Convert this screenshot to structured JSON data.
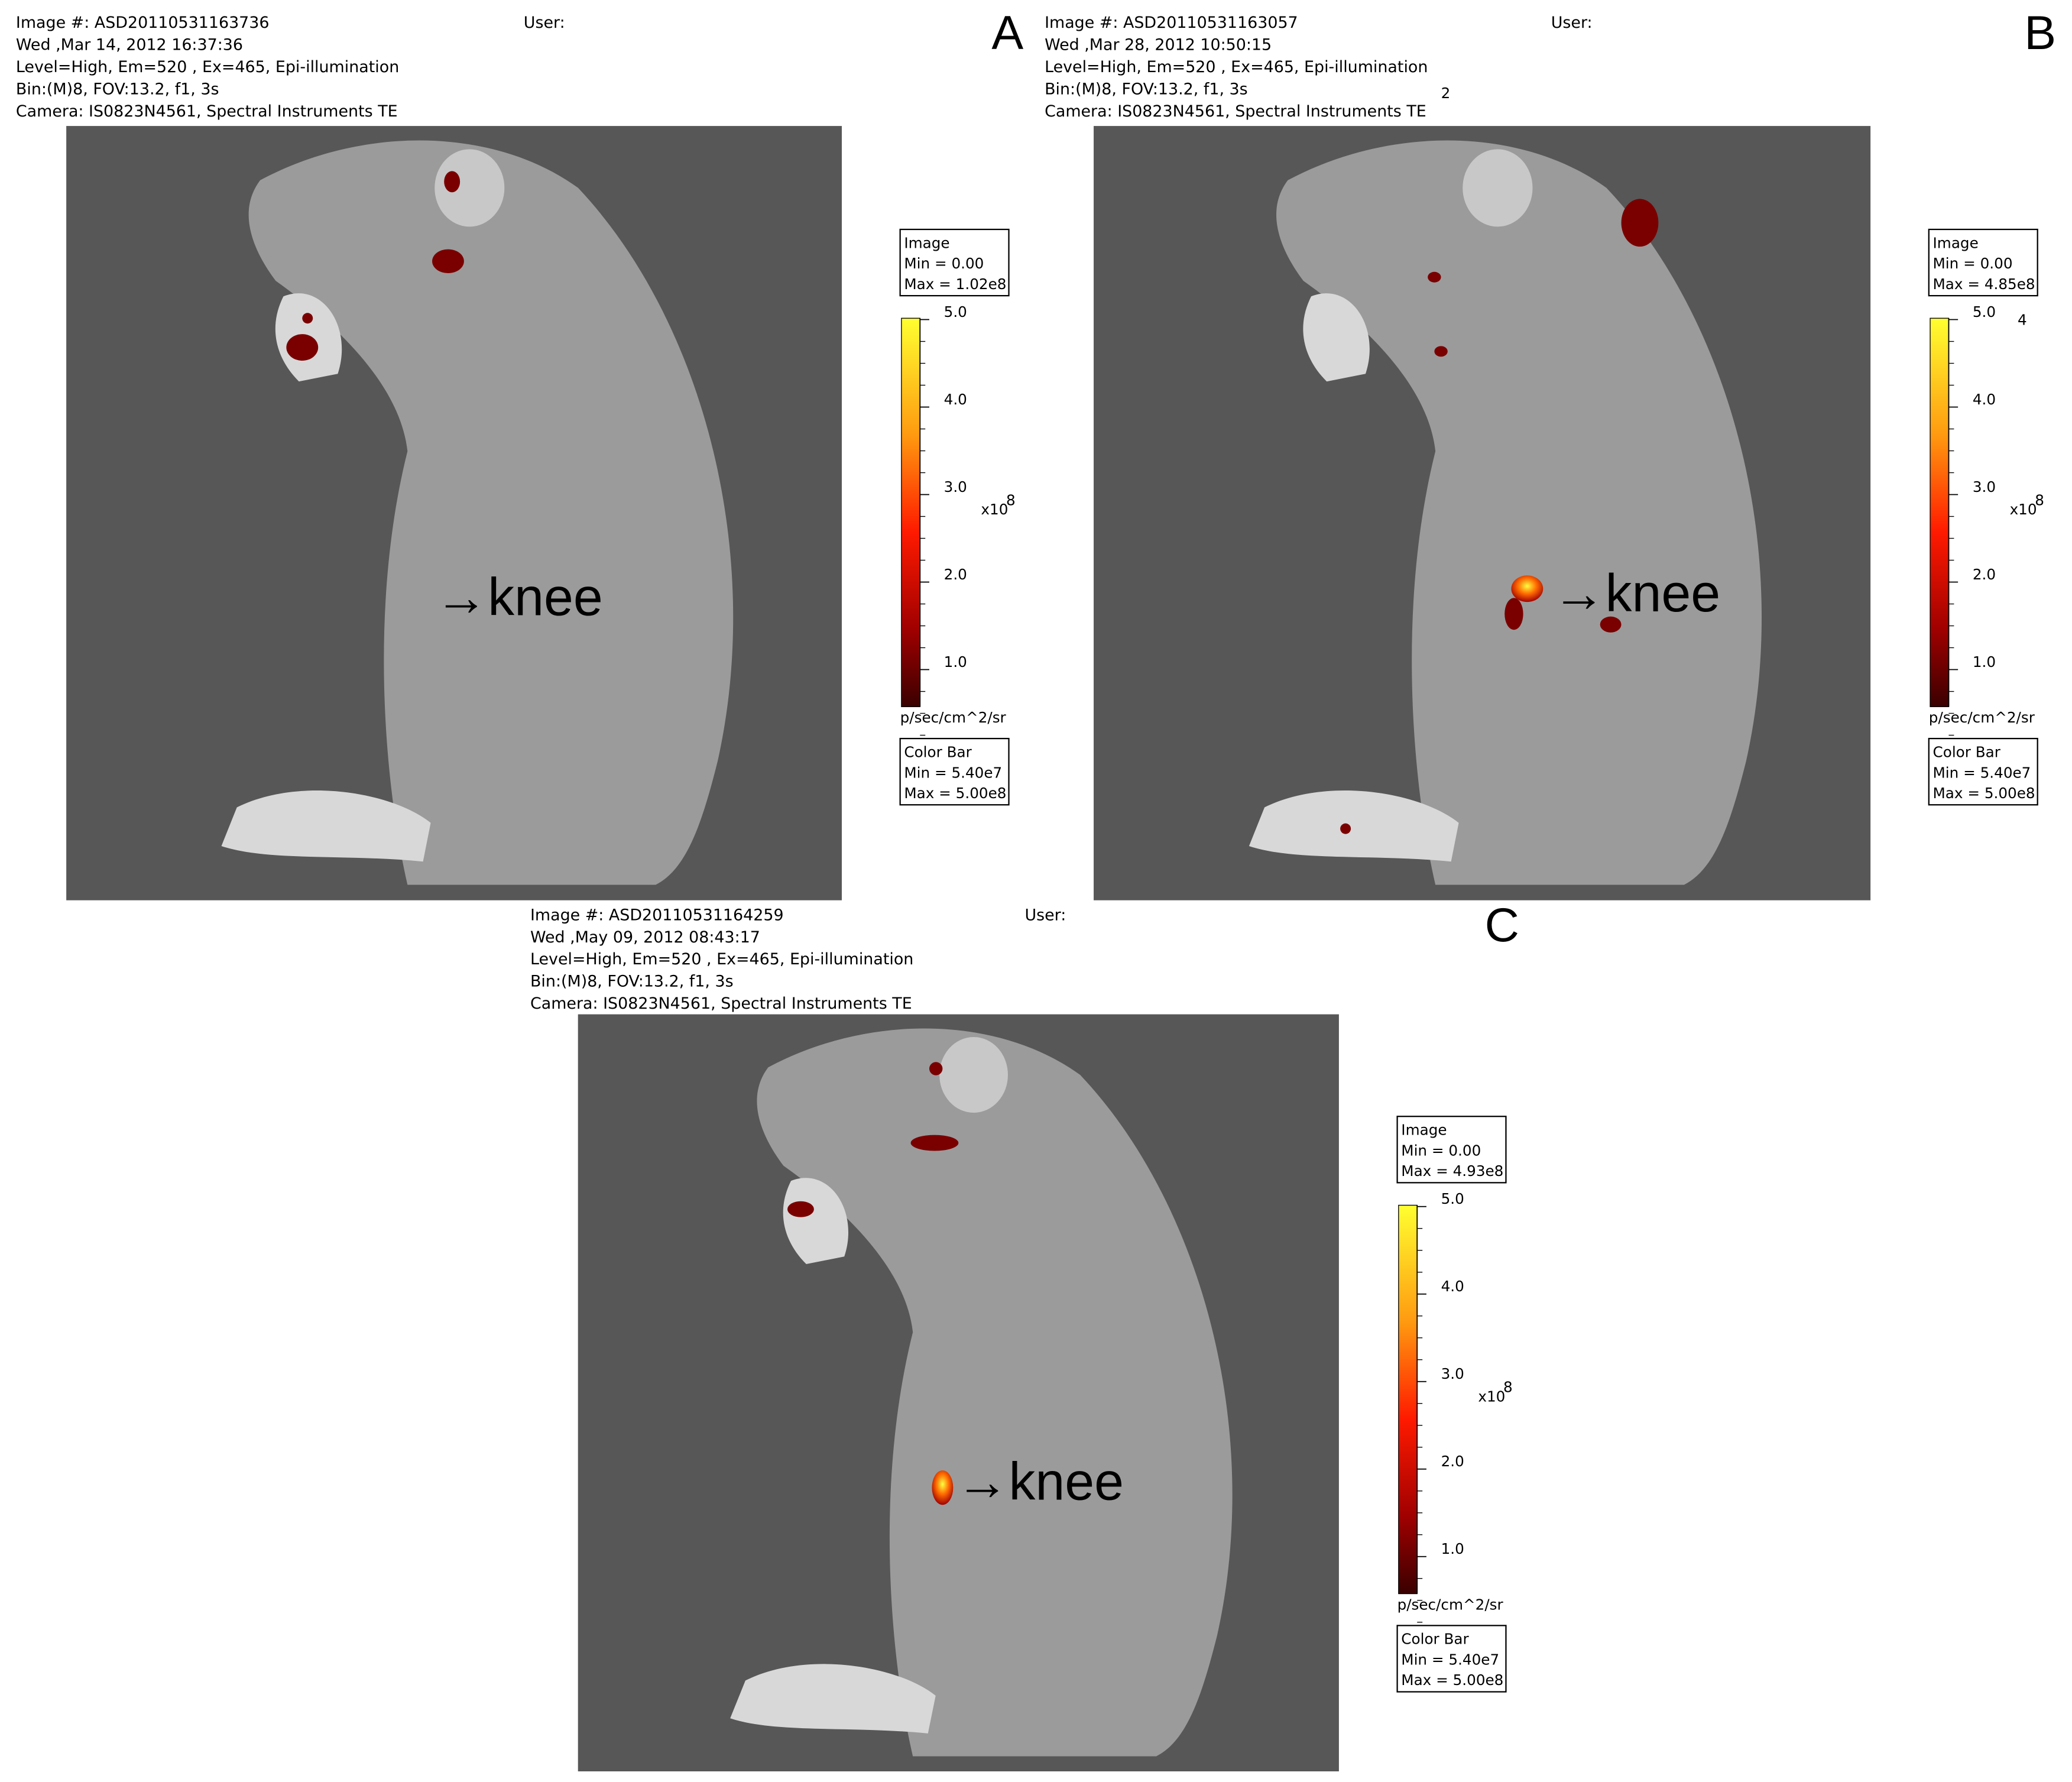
{
  "panels": [
    {
      "label": "A",
      "header": [
        "Image #: ASD20110531163736",
        "Wed ,Mar 14, 2012 16:37:36",
        "Level=High, Em=520 , Ex=465, Epi-illumination",
        "Bin:(M)8, FOV:13.2, f1, 3s",
        "Camera: IS0823N4561, Spectral Instruments TE"
      ],
      "user": "User:",
      "annotation": "→knee",
      "image_box": {
        "title": "Image",
        "min": "Min = 0.00",
        "max": "Max = 1.02e8"
      },
      "colorbar_ticks": [
        "5.0",
        "4.0",
        "3.0",
        "2.0",
        "1.0"
      ],
      "multiplier": "x10",
      "exponent": "8",
      "units": "p/sec/cm^2/sr",
      "colorbar_box": {
        "title": "Color Bar",
        "min": "Min = 5.40e7",
        "max": "Max = 5.00e8"
      }
    },
    {
      "label": "B",
      "header": [
        "Image #: ASD20110531163057",
        "Wed ,Mar 28, 2012 10:50:15",
        "Level=High, Em=520 , Ex=465, Epi-illumination",
        "Bin:(M)8, FOV:13.2, f1, 3s",
        "Camera: IS0823N4561, Spectral Instruments TE"
      ],
      "user": "User:",
      "annotation": "→knee",
      "image_box": {
        "title": "Image",
        "min": "Min = 0.00",
        "max": "Max = 4.85e8"
      },
      "colorbar_ticks": [
        "5.0",
        "4.0",
        "3.0",
        "2.0",
        "1.0"
      ],
      "multiplier": "x10",
      "exponent": "8",
      "units": "p/sec/cm^2/sr",
      "colorbar_box": {
        "title": "Color Bar",
        "min": "Min = 5.40e7",
        "max": "Max = 5.00e8"
      },
      "stray_labels": [
        "2",
        "4"
      ]
    },
    {
      "label": "C",
      "header": [
        "Image #: ASD20110531164259",
        "Wed ,May 09, 2012 08:43:17",
        "Level=High, Em=520 , Ex=465, Epi-illumination",
        "Bin:(M)8, FOV:13.2, f1, 3s",
        "Camera: IS0823N4561, Spectral Instruments TE"
      ],
      "user": "User:",
      "annotation": "→knee",
      "image_box": {
        "title": "Image",
        "min": "Min = 0.00",
        "max": "Max = 4.93e8"
      },
      "colorbar_ticks": [
        "5.0",
        "4.0",
        "3.0",
        "2.0",
        "1.0"
      ],
      "multiplier": "x10",
      "exponent": "8",
      "units": "p/sec/cm^2/sr",
      "colorbar_box": {
        "title": "Color Bar",
        "min": "Min = 5.40e7",
        "max": "Max = 5.00e8"
      }
    }
  ]
}
